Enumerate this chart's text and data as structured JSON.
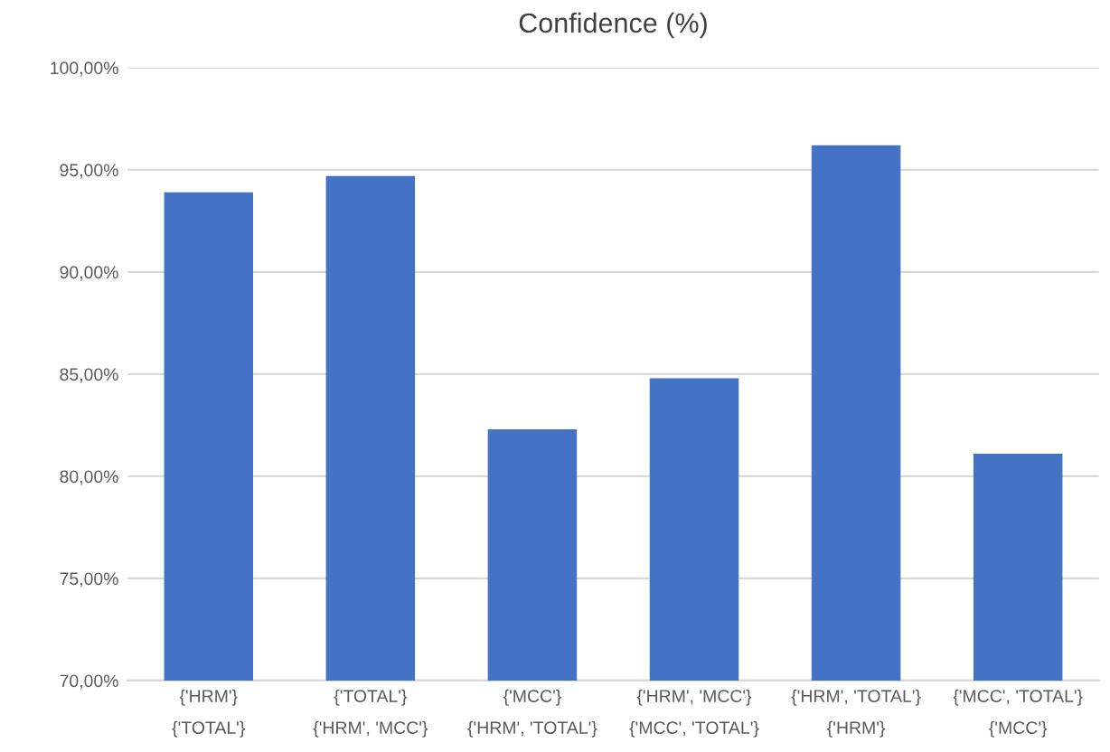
{
  "chart_data": {
    "type": "bar",
    "title": "Confidence (%)",
    "categories": [
      "{'HRM'}\n{'TOTAL'}",
      "{'TOTAL'}\n{'HRM', 'MCC'}",
      "{'MCC'}\n{'HRM', 'TOTAL'}",
      "{'HRM', 'MCC'}\n{'MCC', 'TOTAL'}",
      "{'HRM', 'TOTAL'}\n{'HRM'}",
      "{'MCC', 'TOTAL'}\n{'MCC'}"
    ],
    "values": [
      93.9,
      94.7,
      82.3,
      84.8,
      96.2,
      81.1
    ],
    "color": "#4472c4",
    "ylim": [
      70,
      100
    ],
    "yticks": [
      {
        "value": 70,
        "label": "70,00%"
      },
      {
        "value": 75,
        "label": "75,00%"
      },
      {
        "value": 80,
        "label": "80,00%"
      },
      {
        "value": 85,
        "label": "85,00%"
      },
      {
        "value": 90,
        "label": "90,00%"
      },
      {
        "value": 95,
        "label": "95,00%"
      },
      {
        "value": 100,
        "label": "100,00%"
      }
    ],
    "grid": "y"
  }
}
